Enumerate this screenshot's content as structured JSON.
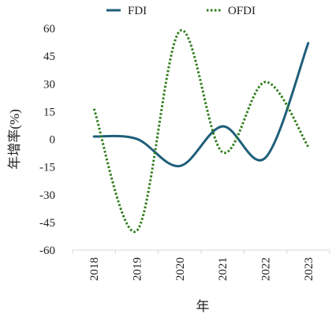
{
  "chart_data": {
    "type": "line",
    "title": "",
    "xlabel": "年",
    "ylabel": "年增率(%)",
    "categories": [
      "2018",
      "2019",
      "2020",
      "2021",
      "2022",
      "2023"
    ],
    "ylim": [
      -60,
      60
    ],
    "yticks": [
      "60",
      "45",
      "30",
      "15",
      "0",
      "-15",
      "-30",
      "-45",
      "-60"
    ],
    "grid": false,
    "legend_position": "top",
    "smooth": true,
    "series": [
      {
        "name": "FDI",
        "color": "#1f5f7a",
        "style": "solid",
        "values": [
          1.5,
          0.2,
          -14.5,
          7.0,
          -10.0,
          52.0
        ]
      },
      {
        "name": "OFDI",
        "color": "#2e7d1a",
        "style": "dotted",
        "values": [
          16.5,
          -49.5,
          58.5,
          -7.0,
          31.0,
          -4.0
        ]
      }
    ]
  }
}
